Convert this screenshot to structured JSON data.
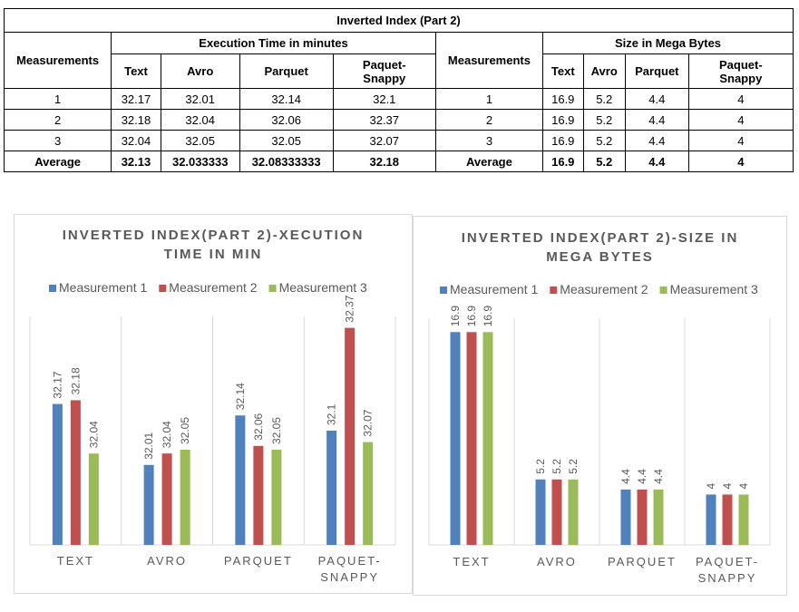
{
  "table": {
    "title": "Inverted Index (Part 2)",
    "left_header": "Measurements",
    "exec_group": "Execution Time in minutes",
    "right_header": "Measurements",
    "size_group": "Size in Mega Bytes",
    "exec_cols": [
      "Text",
      "Avro",
      "Parquet",
      "Paquet-\nSnappy"
    ],
    "size_cols": [
      "Text",
      "Avro",
      "Parquet",
      "Paquet-\nSnappy"
    ],
    "rows": [
      {
        "label": "1",
        "exec": [
          "32.17",
          "32.01",
          "32.14",
          "32.1"
        ],
        "label2": "1",
        "size": [
          "16.9",
          "5.2",
          "4.4",
          "4"
        ]
      },
      {
        "label": "2",
        "exec": [
          "32.18",
          "32.04",
          "32.06",
          "32.37"
        ],
        "label2": "2",
        "size": [
          "16.9",
          "5.2",
          "4.4",
          "4"
        ]
      },
      {
        "label": "3",
        "exec": [
          "32.04",
          "32.05",
          "32.05",
          "32.07"
        ],
        "label2": "3",
        "size": [
          "16.9",
          "5.2",
          "4.4",
          "4"
        ]
      }
    ],
    "average": {
      "label": "Average",
      "exec": [
        "32.13",
        "32.033333",
        "32.08333333",
        "32.18"
      ],
      "label2": "Average",
      "size": [
        "16.9",
        "5.2",
        "4.4",
        "4"
      ]
    }
  },
  "colors": {
    "series": [
      "#4f81bd",
      "#c0504d",
      "#9bbb59"
    ],
    "axis_text": "#595959",
    "grid": "#d9d9d9"
  },
  "chart_data": [
    {
      "type": "bar",
      "title": "INVERTED INDEX(PART 2)-XECUTION\nTIME IN MIN",
      "categories": [
        "TEXT",
        "AVRO",
        "PARQUET",
        "PAQUET-\nSNAPPY"
      ],
      "series": [
        {
          "name": "Measurement 1",
          "values": [
            32.17,
            32.01,
            32.14,
            32.1
          ],
          "labels": [
            "32.17",
            "32.01",
            "32.14",
            "32.1"
          ]
        },
        {
          "name": "Measurement 2",
          "values": [
            32.18,
            32.04,
            32.06,
            32.37
          ],
          "labels": [
            "32.18",
            "32.04",
            "32.06",
            "32.37"
          ]
        },
        {
          "name": "Measurement 3",
          "values": [
            32.04,
            32.05,
            32.05,
            32.07
          ],
          "labels": [
            "32.04",
            "32.05",
            "32.05",
            "32.07"
          ]
        }
      ],
      "ylim": [
        31.8,
        32.4
      ],
      "legend": "top",
      "grid": false,
      "category_separators": true
    },
    {
      "type": "bar",
      "title": "INVERTED INDEX(PART 2)-SIZE IN\nMEGA BYTES",
      "categories": [
        "TEXT",
        "AVRO",
        "PARQUET",
        "PAQUET-\nSNAPPY"
      ],
      "series": [
        {
          "name": "Measurement 1",
          "values": [
            16.9,
            5.2,
            4.4,
            4
          ],
          "labels": [
            "16.9",
            "5.2",
            "4.4",
            "4"
          ]
        },
        {
          "name": "Measurement 2",
          "values": [
            16.9,
            5.2,
            4.4,
            4
          ],
          "labels": [
            "16.9",
            "5.2",
            "4.4",
            "4"
          ]
        },
        {
          "name": "Measurement 3",
          "values": [
            16.9,
            5.2,
            4.4,
            4
          ],
          "labels": [
            "16.9",
            "5.2",
            "4.4",
            "4"
          ]
        }
      ],
      "ylim": [
        0,
        18
      ],
      "legend": "top",
      "grid": false,
      "category_separators": true
    }
  ]
}
